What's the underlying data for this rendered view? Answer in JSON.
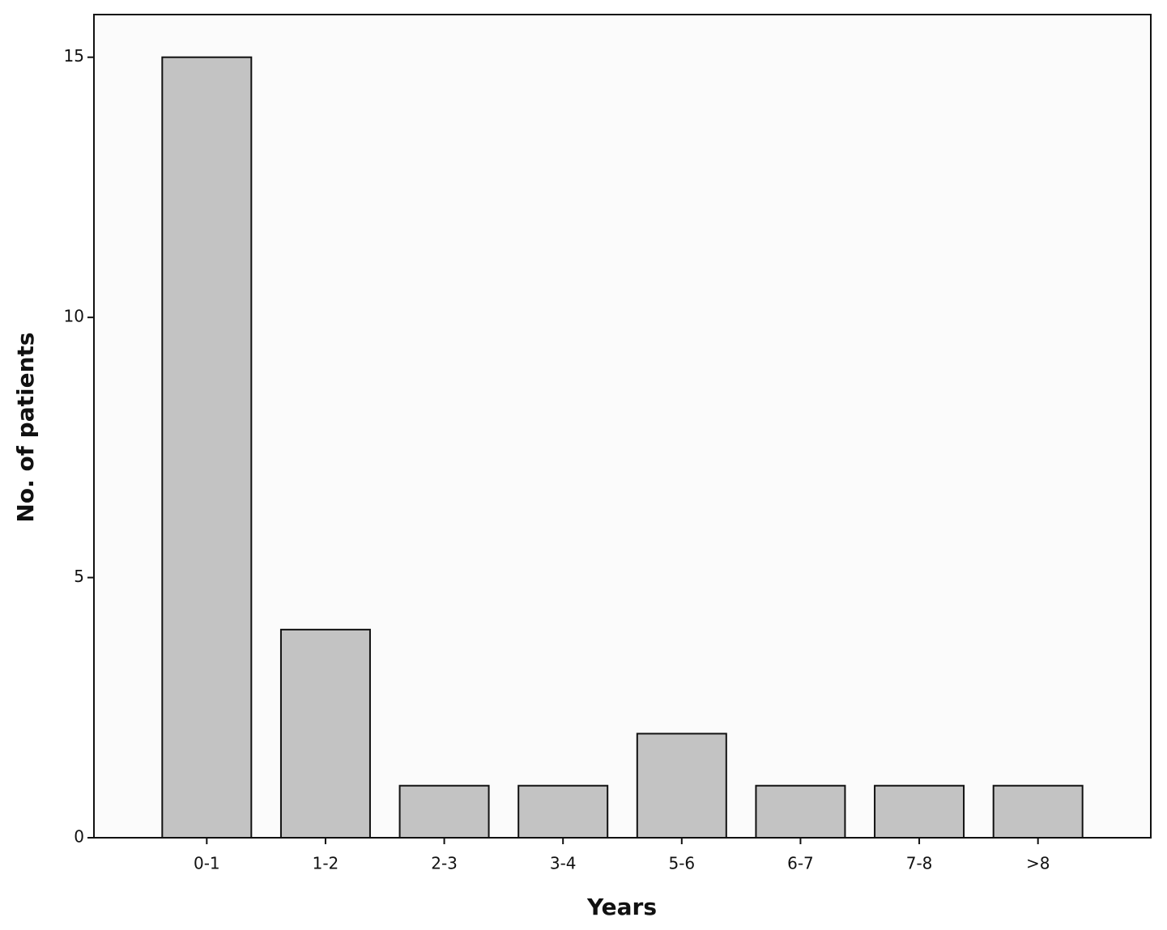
{
  "chart_data": {
    "type": "bar",
    "x_label": "Years",
    "y_label": "No. of patients",
    "categories": [
      "0-1",
      "1-2",
      "2-3",
      "3-4",
      "5-6",
      "6-7",
      "7-8",
      ">8"
    ],
    "values": [
      15,
      4,
      1,
      1,
      2,
      1,
      1,
      1
    ],
    "color": "#c3c3c3",
    "ylim": [
      0,
      15.82
    ],
    "yticks": [
      0,
      5,
      10,
      15
    ],
    "grid": false
  }
}
